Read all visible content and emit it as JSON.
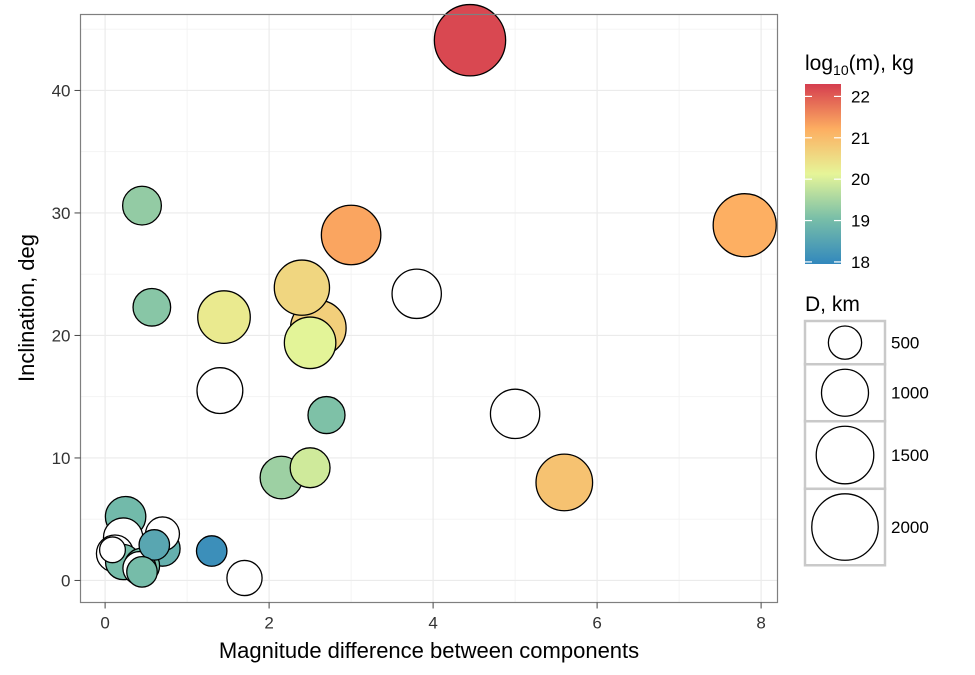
{
  "chart_data": {
    "type": "scatter",
    "xlabel": "Magnitude difference between components",
    "ylabel": "Inclination, deg",
    "xlim": [
      -0.3,
      8.2
    ],
    "ylim": [
      -1.8,
      46.2
    ],
    "x_ticks": [
      0,
      2,
      4,
      6,
      8
    ],
    "y_ticks": [
      0,
      10,
      20,
      30,
      40
    ],
    "grid": true,
    "color_legend": {
      "title_main": "log",
      "title_sub": "10",
      "title_rest": "(m), kg",
      "ticks": [
        18,
        19,
        20,
        21,
        22
      ],
      "range": [
        17.95,
        22.3
      ],
      "placement": "right"
    },
    "size_legend": {
      "title": "D, km",
      "entries": [
        500,
        1000,
        1500,
        2000
      ],
      "placement": "right"
    },
    "no_mass_color": "#ffffff",
    "points": [
      {
        "x": 4.45,
        "y": 44.1,
        "d": 2300,
        "logm": 22.2
      },
      {
        "x": 7.8,
        "y": 29.0,
        "d": 1800,
        "logm": 21.2
      },
      {
        "x": 3.0,
        "y": 28.2,
        "d": 1600,
        "logm": 21.3
      },
      {
        "x": 5.6,
        "y": 8.0,
        "d": 1450,
        "logm": 20.9
      },
      {
        "x": 2.4,
        "y": 23.9,
        "d": 1380,
        "logm": 20.6
      },
      {
        "x": 2.6,
        "y": 20.6,
        "d": 1400,
        "logm": 20.7
      },
      {
        "x": 1.45,
        "y": 21.5,
        "d": 1250,
        "logm": 20.3
      },
      {
        "x": 2.5,
        "y": 19.4,
        "d": 1200,
        "logm": 20.1
      },
      {
        "x": 3.8,
        "y": 23.4,
        "d": 1100,
        "logm": null
      },
      {
        "x": 5.0,
        "y": 13.6,
        "d": 1100,
        "logm": null
      },
      {
        "x": 1.4,
        "y": 15.5,
        "d": 950,
        "logm": null
      },
      {
        "x": 2.15,
        "y": 8.4,
        "d": 820,
        "logm": 19.4
      },
      {
        "x": 2.5,
        "y": 9.2,
        "d": 720,
        "logm": 19.9
      },
      {
        "x": 0.45,
        "y": 30.6,
        "d": 680,
        "logm": 19.3
      },
      {
        "x": 0.57,
        "y": 22.3,
        "d": 640,
        "logm": 19.2
      },
      {
        "x": 2.7,
        "y": 13.5,
        "d": 620,
        "logm": 19.1
      },
      {
        "x": 0.25,
        "y": 5.2,
        "d": 740,
        "logm": 18.95
      },
      {
        "x": 0.22,
        "y": 3.5,
        "d": 700,
        "logm": null
      },
      {
        "x": 0.12,
        "y": 2.2,
        "d": 620,
        "logm": null
      },
      {
        "x": 0.09,
        "y": 2.5,
        "d": 300,
        "logm": null
      },
      {
        "x": 0.7,
        "y": 3.8,
        "d": 520,
        "logm": null
      },
      {
        "x": 0.7,
        "y": 2.6,
        "d": 560,
        "logm": 18.75
      },
      {
        "x": 0.6,
        "y": 2.9,
        "d": 420,
        "logm": 18.55
      },
      {
        "x": 0.22,
        "y": 1.5,
        "d": 560,
        "logm": 19.0
      },
      {
        "x": 0.45,
        "y": 1.2,
        "d": 560,
        "logm": 19.05
      },
      {
        "x": 0.42,
        "y": 1.0,
        "d": 500,
        "logm": null
      },
      {
        "x": 0.45,
        "y": 0.7,
        "d": 420,
        "logm": 19.0
      },
      {
        "x": 1.3,
        "y": 2.4,
        "d": 420,
        "logm": 18.1
      },
      {
        "x": 1.7,
        "y": 0.2,
        "d": 560,
        "logm": null
      }
    ]
  }
}
